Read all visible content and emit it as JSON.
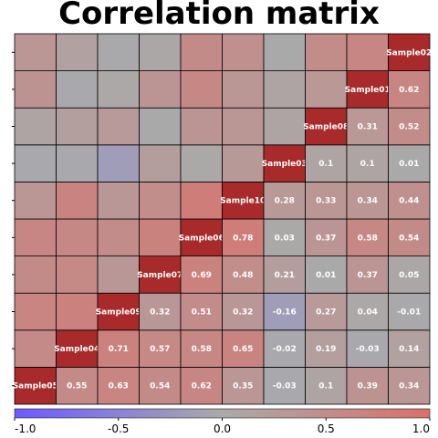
{
  "chart_data": {
    "type": "heatmap",
    "title": "Correlation matrix",
    "samples": [
      "Sample05",
      "Sample04",
      "Sample09",
      "Sample07",
      "Sample06",
      "Sample10",
      "Sample03",
      "Sample08",
      "Sample01",
      "Sample02"
    ],
    "matrix": [
      [
        1,
        0.55,
        0.63,
        0.54,
        0.62,
        0.35,
        -0.03,
        0.1,
        0.39,
        0.34
      ],
      [
        0.55,
        1,
        0.71,
        0.57,
        0.58,
        0.65,
        -0.02,
        0.19,
        -0.03,
        0.14
      ],
      [
        0.63,
        0.71,
        1,
        0.32,
        0.51,
        0.32,
        -0.16,
        0.27,
        0.04,
        -0.01
      ],
      [
        0.54,
        0.57,
        0.32,
        1,
        0.69,
        0.48,
        0.21,
        0.01,
        0.37,
        0.05
      ],
      [
        0.62,
        0.58,
        0.51,
        0.69,
        1,
        0.78,
        0.03,
        0.37,
        0.58,
        0.54
      ],
      [
        0.35,
        0.65,
        0.32,
        0.48,
        0.78,
        1,
        0.28,
        0.33,
        0.34,
        0.44
      ],
      [
        -0.03,
        -0.02,
        -0.16,
        0.21,
        0.03,
        0.28,
        1,
        0.1,
        0.1,
        0.01
      ],
      [
        0.1,
        0.19,
        0.27,
        0.01,
        0.37,
        0.33,
        0.1,
        1,
        0.31,
        0.52
      ],
      [
        0.39,
        -0.03,
        0.04,
        0.37,
        0.58,
        0.34,
        0.1,
        0.31,
        1,
        0.62
      ],
      [
        0.34,
        0.14,
        -0.01,
        0.05,
        0.54,
        0.44,
        0.01,
        0.52,
        0.62,
        1
      ]
    ],
    "scale": {
      "min": -1,
      "max": 1,
      "ticks": [
        "-1.0",
        "-0.5",
        "0.0",
        "0.5",
        "1.0"
      ],
      "tick_values": [
        -1,
        -0.5,
        0,
        0.5,
        1
      ],
      "colors": {
        "negative": "#6b5bff",
        "neutral": "#aaaaaa",
        "positive": "#d9706b",
        "diagonal": "#a82a2a"
      }
    }
  }
}
